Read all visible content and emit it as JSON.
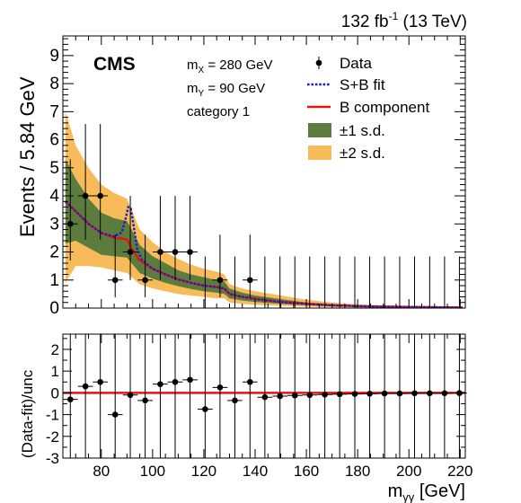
{
  "header": {
    "lumi_pre": "132 fb",
    "lumi_sup": "-1",
    "lumi_post": " (13 TeV)"
  },
  "experiment": "CMS",
  "annotations": {
    "mx": {
      "sym": "m",
      "sub": "X",
      "rest": " = 280 GeV"
    },
    "my": {
      "sym": "m",
      "sub": "Y",
      "rest": " = 90 GeV"
    },
    "category": "category 1"
  },
  "legend": {
    "data": "Data",
    "sb": "S+B fit",
    "bkg": "B component",
    "s1": "±1 s.d.",
    "s2": "±2 s.d."
  },
  "colors": {
    "band1": "#5b7c3d",
    "band2": "#f7bc59",
    "sb": "#1f1fbf",
    "bkg": "#e8120f",
    "data": "#000000"
  },
  "chart_data": [
    {
      "type": "scatter",
      "title": "",
      "ylabel": "Events / 5.84 GeV",
      "xlim": [
        65,
        222
      ],
      "ylim": [
        0,
        9.7
      ],
      "yticks": [
        0,
        1,
        2,
        3,
        4,
        5,
        6,
        7,
        8,
        9
      ],
      "data": {
        "x": [
          67.9,
          73.8,
          79.6,
          85.4,
          91.3,
          97.1,
          103.0,
          108.8,
          114.6,
          120.5,
          126.3,
          132.1,
          138.0,
          143.8,
          149.7,
          155.5,
          161.3,
          167.2,
          173.0,
          178.9,
          184.7,
          190.5,
          196.4,
          202.2,
          208.1,
          213.9,
          219.7
        ],
        "y": [
          3,
          4,
          4,
          1,
          2,
          1,
          2,
          2,
          2,
          0,
          1,
          0,
          1,
          0,
          0,
          0,
          0,
          0,
          0,
          0,
          0,
          0,
          0,
          0,
          0,
          0,
          0
        ]
      },
      "bkg_fit": {
        "x": [
          66,
          70,
          75,
          80,
          85,
          88,
          90,
          92,
          95,
          100,
          105,
          110,
          115,
          120,
          125,
          128,
          130,
          135,
          140,
          145,
          150,
          160,
          170,
          180,
          190,
          200,
          210,
          221
        ],
        "y": [
          3.8,
          3.45,
          3.0,
          2.68,
          2.5,
          2.48,
          2.45,
          2.1,
          1.7,
          1.4,
          1.2,
          1.02,
          0.9,
          0.8,
          0.75,
          0.7,
          0.5,
          0.4,
          0.33,
          0.27,
          0.22,
          0.15,
          0.1,
          0.07,
          0.05,
          0.04,
          0.03,
          0.02
        ]
      },
      "sb_fit": {
        "x": [
          66,
          70,
          75,
          80,
          85,
          88,
          89.5,
          90.5,
          91.5,
          92.5,
          94,
          96,
          100,
          105,
          110,
          115,
          120,
          125,
          128,
          130,
          135,
          140,
          145,
          150,
          160,
          170,
          180,
          190,
          200,
          210,
          221
        ],
        "y": [
          3.8,
          3.45,
          3.0,
          2.68,
          2.55,
          2.7,
          3.2,
          3.6,
          3.55,
          3.0,
          2.1,
          1.7,
          1.4,
          1.2,
          1.02,
          0.9,
          0.8,
          0.75,
          0.7,
          0.5,
          0.4,
          0.33,
          0.27,
          0.22,
          0.15,
          0.1,
          0.07,
          0.05,
          0.04,
          0.03,
          0.02
        ]
      },
      "band_2sd": {
        "x": [
          66,
          70,
          75,
          80,
          85,
          90,
          95,
          100,
          105,
          110,
          115,
          120,
          125,
          128,
          130,
          135,
          140,
          150,
          160,
          170,
          180,
          190,
          200,
          210,
          221
        ],
        "lo": [
          0.9,
          1.5,
          1.5,
          1.45,
          1.35,
          1.25,
          0.85,
          0.7,
          0.6,
          0.5,
          0.45,
          0.4,
          0.35,
          0.35,
          0.2,
          0.15,
          0.12,
          0.08,
          0.05,
          0.03,
          0.02,
          0.01,
          0.01,
          0.0,
          0.0
        ],
        "hi": [
          7.0,
          5.8,
          5.0,
          4.4,
          4.1,
          3.9,
          2.8,
          2.35,
          2.0,
          1.75,
          1.55,
          1.4,
          1.3,
          1.2,
          0.85,
          0.7,
          0.6,
          0.45,
          0.3,
          0.2,
          0.13,
          0.1,
          0.08,
          0.06,
          0.04
        ]
      },
      "band_1sd": {
        "x": [
          66,
          70,
          75,
          80,
          85,
          90,
          95,
          100,
          105,
          110,
          115,
          120,
          125,
          128,
          130,
          135,
          140,
          150,
          160,
          170,
          180,
          190,
          200,
          210,
          221
        ],
        "lo": [
          2.3,
          2.4,
          2.15,
          1.9,
          1.85,
          1.8,
          1.25,
          1.05,
          0.9,
          0.78,
          0.68,
          0.6,
          0.55,
          0.5,
          0.35,
          0.27,
          0.22,
          0.15,
          0.1,
          0.06,
          0.04,
          0.03,
          0.02,
          0.015,
          0.01
        ],
        "hi": [
          5.3,
          4.6,
          3.9,
          3.4,
          3.2,
          3.1,
          2.25,
          1.85,
          1.6,
          1.35,
          1.2,
          1.1,
          1.0,
          0.95,
          0.7,
          0.55,
          0.45,
          0.32,
          0.2,
          0.14,
          0.1,
          0.07,
          0.05,
          0.04,
          0.03
        ]
      }
    },
    {
      "type": "scatter",
      "title": "",
      "xlabel": {
        "sym": "m",
        "sub": "γγ",
        "rest": " [GeV]"
      },
      "ylabel": "(Data-fit)/unc",
      "xlim": [
        65,
        222
      ],
      "ylim": [
        -3,
        2.7
      ],
      "xticks": [
        80,
        100,
        120,
        140,
        160,
        180,
        200,
        220
      ],
      "yticks": [
        -3,
        -2,
        -1,
        0,
        1,
        2
      ],
      "data": {
        "x": [
          67.9,
          73.8,
          79.6,
          85.4,
          91.3,
          97.1,
          103.0,
          108.8,
          114.6,
          120.5,
          126.3,
          132.1,
          138.0,
          143.8,
          149.7,
          155.5,
          161.3,
          167.2,
          173.0,
          178.9,
          184.7,
          190.5,
          196.4,
          202.2,
          208.1,
          213.9,
          219.7
        ],
        "y": [
          -0.3,
          0.3,
          0.5,
          -1.0,
          -0.1,
          -0.35,
          0.4,
          0.5,
          0.6,
          -0.75,
          0.25,
          -0.35,
          0.5,
          -0.2,
          -0.15,
          -0.12,
          -0.1,
          -0.08,
          -0.06,
          -0.05,
          -0.04,
          -0.03,
          -0.03,
          -0.02,
          -0.02,
          -0.02,
          -0.01
        ]
      }
    }
  ]
}
